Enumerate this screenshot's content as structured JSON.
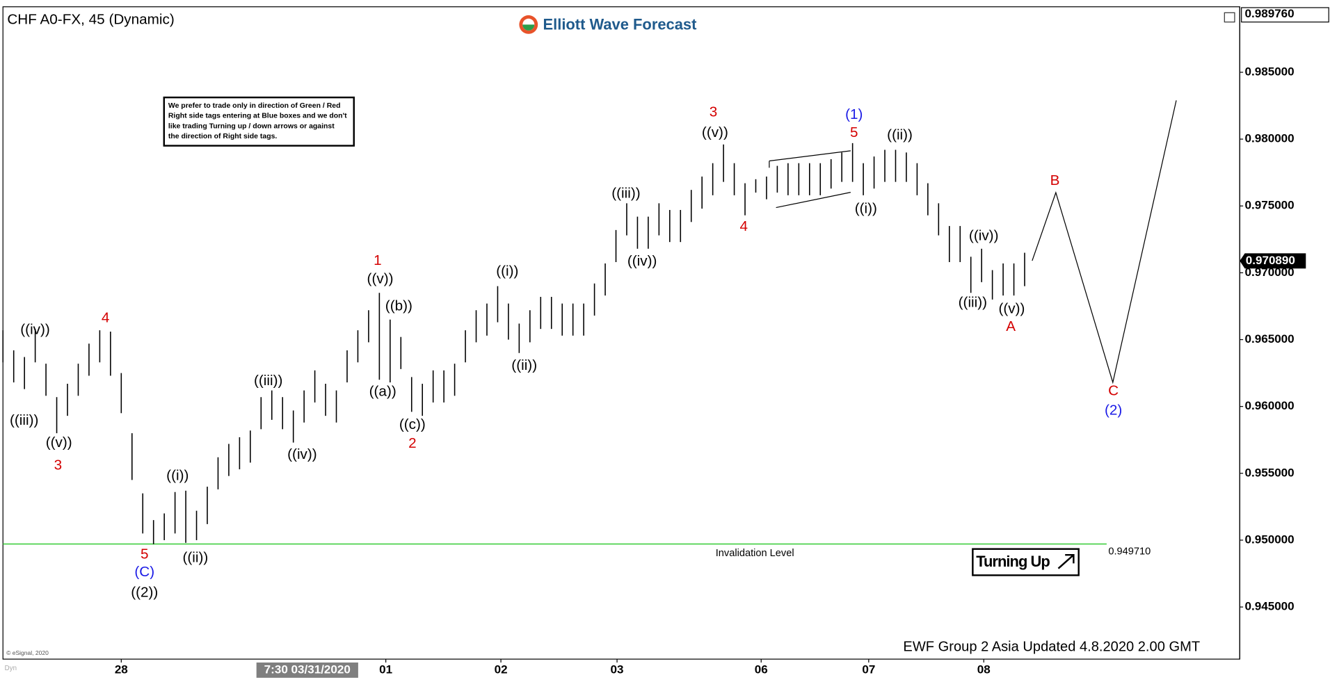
{
  "chart_data": {
    "type": "ohlc",
    "title": "CHF A0-FX, 45 (Dynamic)",
    "logo": "Elliott Wave Forecast",
    "note": [
      "We prefer to trade only in direction of Green / Red",
      "Right side tags entering at Blue boxes and we don't",
      "like trading Turning up / down arrows or against",
      "the direction of Right side tags."
    ],
    "footer": "EWF Group 2 Asia Updated 4.8.2020 2.00 GMT",
    "copyright": "© eSignal, 2020",
    "corner_tag": "Dyn",
    "signal": "Turning Up",
    "color": "#000000",
    "high": [
      0.9657,
      0.9642,
      0.9637,
      0.9658,
      0.9632,
      0.9607,
      0.9617,
      0.9632,
      0.9647,
      0.9657,
      0.9656,
      0.9625,
      0.958,
      0.9535,
      0.9515,
      0.952,
      0.9536,
      0.9537,
      0.9522,
      0.954,
      0.9562,
      0.9572,
      0.9577,
      0.9582,
      0.9607,
      0.9612,
      0.9607,
      0.9597,
      0.9612,
      0.9627,
      0.9617,
      0.9612,
      0.9642,
      0.9657,
      0.9672,
      0.9685,
      0.9665,
      0.9652,
      0.9622,
      0.9617,
      0.9627,
      0.9627,
      0.9632,
      0.9657,
      0.9672,
      0.9677,
      0.969,
      0.9677,
      0.9662,
      0.9672,
      0.9682,
      0.9682,
      0.9677,
      0.9677,
      0.9677,
      0.9692,
      0.9707,
      0.9732,
      0.9752,
      0.9742,
      0.9742,
      0.9752,
      0.9747,
      0.9747,
      0.9762,
      0.9772,
      0.9782,
      0.9796,
      0.9782,
      0.9767,
      0.977,
      0.9772,
      0.978,
      0.9782,
      0.9782,
      0.9782,
      0.9782,
      0.9785,
      0.979,
      0.9797,
      0.9782,
      0.9787,
      0.9792,
      0.9792,
      0.979,
      0.9782,
      0.9767,
      0.9752,
      0.9735,
      0.9735,
      0.9712,
      0.9718,
      0.9702,
      0.9707,
      0.9707,
      0.9715
    ],
    "low": [
      0.9633,
      0.9618,
      0.9613,
      0.9633,
      0.9608,
      0.958,
      0.9593,
      0.9608,
      0.9623,
      0.9633,
      0.9623,
      0.9595,
      0.9545,
      0.9505,
      0.9497,
      0.95,
      0.9505,
      0.9498,
      0.95,
      0.9512,
      0.9538,
      0.9548,
      0.9553,
      0.9558,
      0.9583,
      0.959,
      0.9583,
      0.9573,
      0.9588,
      0.9603,
      0.9593,
      0.9588,
      0.9618,
      0.9633,
      0.9648,
      0.962,
      0.9618,
      0.9628,
      0.9596,
      0.9593,
      0.9603,
      0.9603,
      0.9608,
      0.9633,
      0.9648,
      0.9653,
      0.9663,
      0.965,
      0.964,
      0.9648,
      0.9658,
      0.9658,
      0.9653,
      0.9653,
      0.9653,
      0.9668,
      0.9683,
      0.9708,
      0.9728,
      0.9718,
      0.9718,
      0.9728,
      0.9723,
      0.9723,
      0.9738,
      0.9748,
      0.9758,
      0.9768,
      0.9758,
      0.9743,
      0.976,
      0.9755,
      0.976,
      0.9758,
      0.9758,
      0.9758,
      0.9758,
      0.9763,
      0.9768,
      0.9768,
      0.9758,
      0.9763,
      0.9768,
      0.9768,
      0.9768,
      0.9758,
      0.9743,
      0.9728,
      0.9708,
      0.9708,
      0.9685,
      0.9693,
      0.968,
      0.9683,
      0.9683,
      0.969
    ],
    "xlim": [
      0,
      115
    ],
    "ylim": [
      0.9411,
      0.9899
    ],
    "xticks": [
      {
        "value": 11,
        "label": "28"
      },
      {
        "value": 35.6,
        "label": "01"
      },
      {
        "value": 46.3,
        "label": "02"
      },
      {
        "value": 57.1,
        "label": "03"
      },
      {
        "value": 70.5,
        "label": "06"
      },
      {
        "value": 80.5,
        "label": "07"
      },
      {
        "value": 91.2,
        "label": "08"
      }
    ],
    "crosshair": {
      "value": 28.3,
      "label": "7:30 03/31/2020"
    },
    "yticks": [
      {
        "value": 0.985,
        "label": "0.985000"
      },
      {
        "value": 0.98,
        "label": "0.980000"
      },
      {
        "value": 0.975,
        "label": "0.975000"
      },
      {
        "value": 0.97,
        "label": "0.970000"
      },
      {
        "value": 0.965,
        "label": "0.965000"
      },
      {
        "value": 0.96,
        "label": "0.960000"
      },
      {
        "value": 0.955,
        "label": "0.955000"
      },
      {
        "value": 0.95,
        "label": "0.950000"
      },
      {
        "value": 0.945,
        "label": "0.945000"
      }
    ],
    "top_price": {
      "value": 0.98976,
      "label": "0.989760"
    },
    "last_price": {
      "value": 0.97089,
      "label": "0.970890"
    },
    "invalidation": {
      "value": 0.94971,
      "label": "0.949710",
      "text": "Invalidation Level",
      "color": "#33cc33"
    },
    "projection": {
      "x": [
        95.7,
        97.9,
        103.2,
        109.1
      ],
      "values": [
        0.9709,
        0.976,
        0.9618,
        0.9829
      ],
      "color": "#000000"
    },
    "wave_labels": [
      {
        "text": "((iv))",
        "color": "#000000"
      },
      {
        "text": "((iii))",
        "color": "#000000"
      },
      {
        "text": "((v))",
        "color": "#000000"
      },
      {
        "text": "3",
        "color": "#d40000"
      },
      {
        "text": "4",
        "color": "#d40000"
      },
      {
        "text": "5",
        "color": "#d40000"
      },
      {
        "text": "(C)",
        "color": "#1a1ae6"
      },
      {
        "text": "((2))",
        "color": "#000000"
      },
      {
        "text": "((i))",
        "color": "#000000"
      },
      {
        "text": "((ii))",
        "color": "#000000"
      },
      {
        "text": "((iii))",
        "color": "#000000"
      },
      {
        "text": "((iv))",
        "color": "#000000"
      },
      {
        "text": "1",
        "color": "#d40000"
      },
      {
        "text": "((v))",
        "color": "#000000"
      },
      {
        "text": "((b))",
        "color": "#000000"
      },
      {
        "text": "((a))",
        "color": "#000000"
      },
      {
        "text": "((c))",
        "color": "#000000"
      },
      {
        "text": "2",
        "color": "#d40000"
      },
      {
        "text": "((i))",
        "color": "#000000"
      },
      {
        "text": "((ii))",
        "color": "#000000"
      },
      {
        "text": "((iii))",
        "color": "#000000"
      },
      {
        "text": "((iv))",
        "color": "#000000"
      },
      {
        "text": "3",
        "color": "#d40000"
      },
      {
        "text": "((v))",
        "color": "#000000"
      },
      {
        "text": "4",
        "color": "#d40000"
      },
      {
        "text": "(1)",
        "color": "#1a1ae6"
      },
      {
        "text": "5",
        "color": "#d40000"
      },
      {
        "text": "((ii))",
        "color": "#000000"
      },
      {
        "text": "((i))",
        "color": "#000000"
      },
      {
        "text": "((iv))",
        "color": "#000000"
      },
      {
        "text": "((iii))",
        "color": "#000000"
      },
      {
        "text": "((v))",
        "color": "#000000"
      },
      {
        "text": "A",
        "color": "#d40000"
      },
      {
        "text": "B",
        "color": "#d40000"
      },
      {
        "text": "C",
        "color": "#d40000"
      },
      {
        "text": "(2)",
        "color": "#1a1ae6"
      }
    ]
  }
}
